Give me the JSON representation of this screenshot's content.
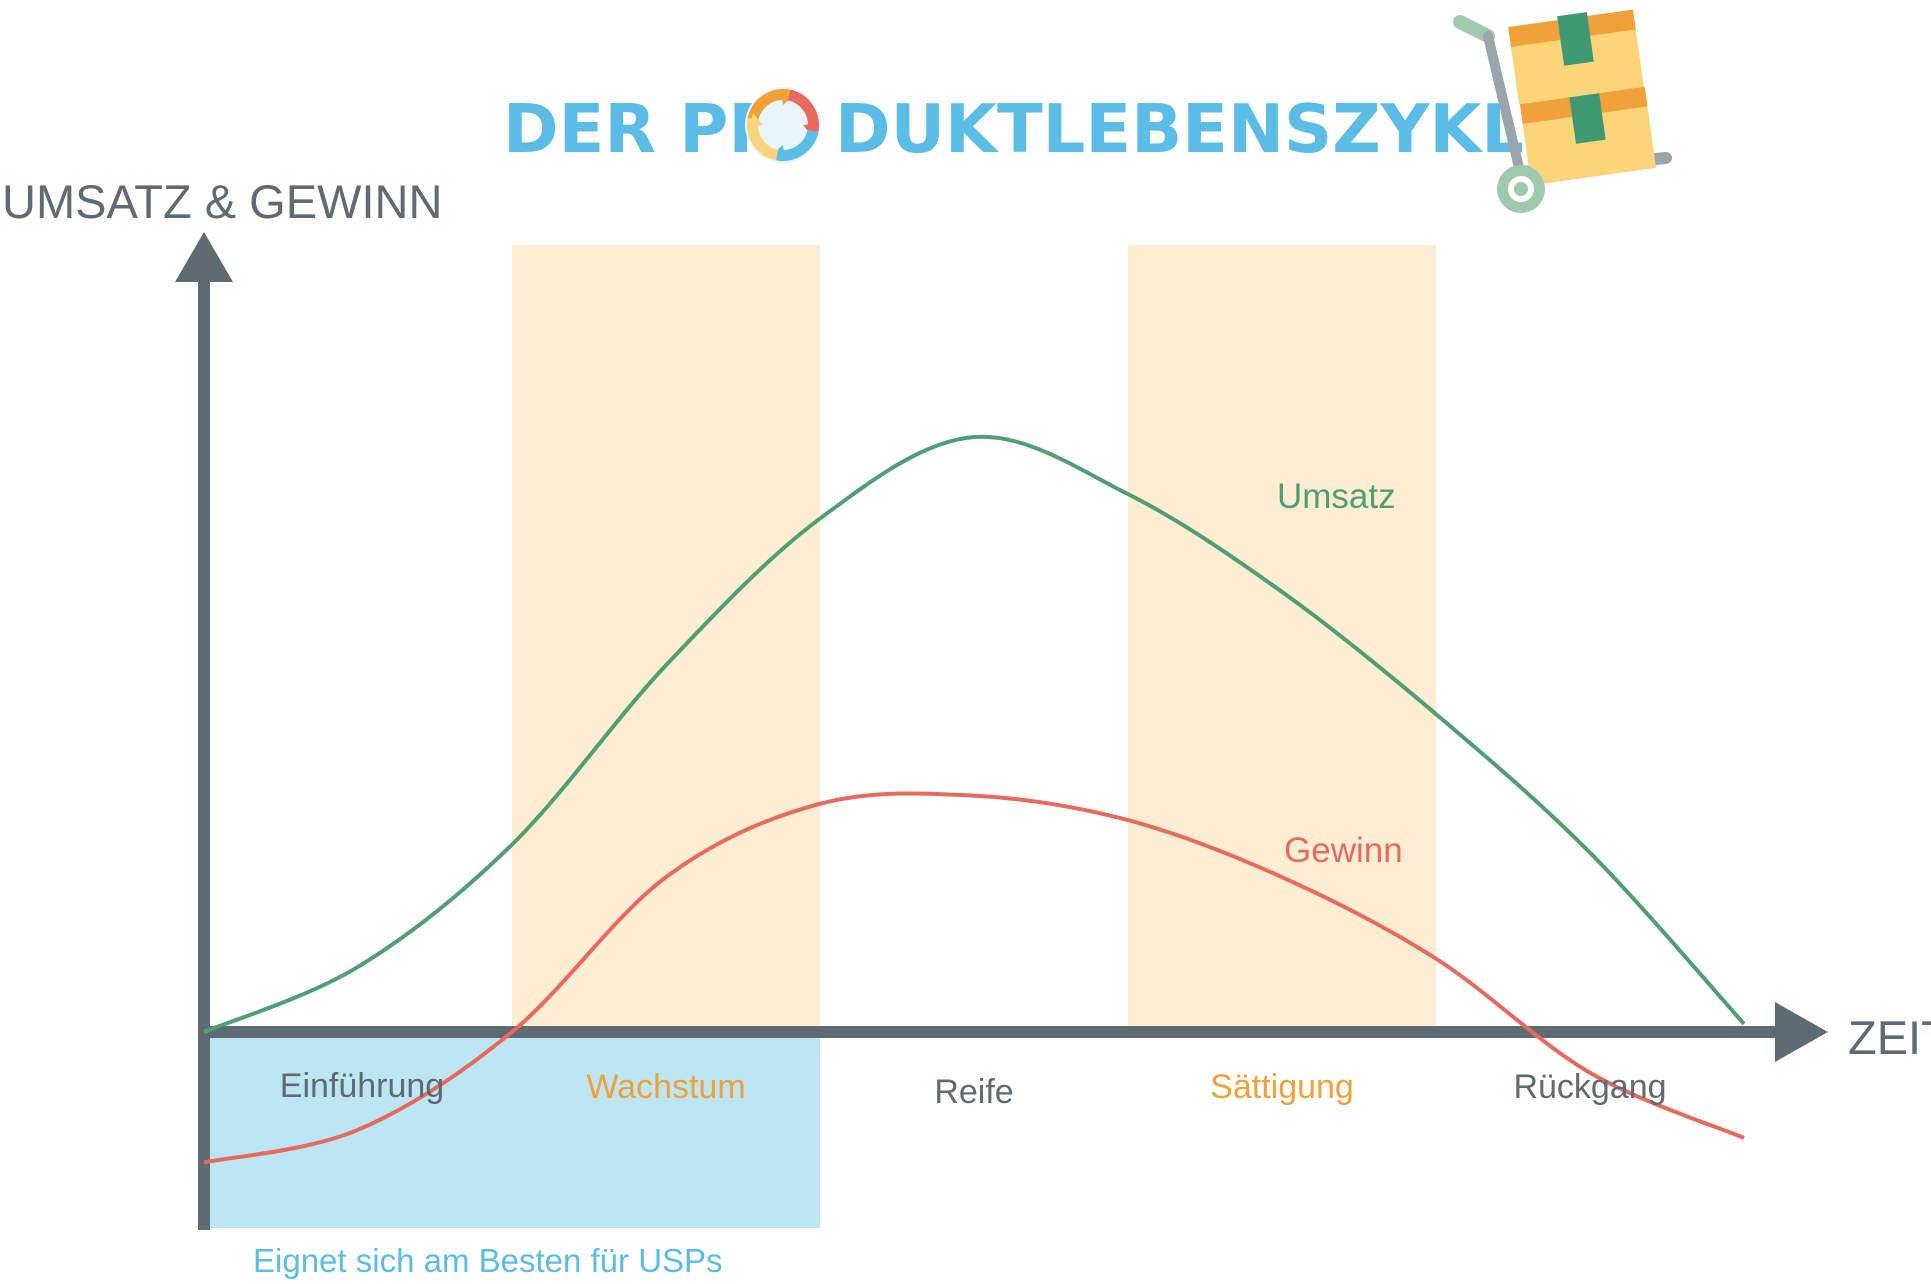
{
  "title": {
    "before": "DER PR",
    "after": "DUKTLEBENSZYKLUS",
    "color": "#5bbde5",
    "icon": "recycle-cycle-icon",
    "illustration": "hand-truck-boxes-icon"
  },
  "chart_data": {
    "type": "line",
    "title": "DER PRODUKTLEBENSZYKLUS",
    "ylabel": "UMSATZ & GEWINN",
    "xlabel": "ZEIT",
    "x": [
      0,
      0.5,
      1,
      1.5,
      2,
      2.5,
      3,
      3.5,
      4,
      4.5,
      5
    ],
    "xlim": [
      0,
      5.1
    ],
    "ylim": [
      -1.6,
      7.3
    ],
    "grid": false,
    "legend": "inline labels",
    "phases": [
      {
        "label": "Einführung",
        "from": 0,
        "to": 1,
        "shaded": false,
        "label_color": "#5f6b72"
      },
      {
        "label": "Wachstum",
        "from": 1,
        "to": 2,
        "shaded": true,
        "label_color": "#f0a13a"
      },
      {
        "label": "Reife",
        "from": 2,
        "to": 3,
        "shaded": false,
        "label_color": "#5f6b72"
      },
      {
        "label": "Sättigung",
        "from": 3,
        "to": 4,
        "shaded": true,
        "label_color": "#f0a13a"
      },
      {
        "label": "Rückgang",
        "from": 4,
        "to": 5,
        "shaded": false,
        "label_color": "#5f6b72"
      }
    ],
    "highlight": {
      "from": 0,
      "to": 2,
      "label": "Eignet sich am Besten für USPs",
      "color": "#bde6f5",
      "label_color": "#5bbde5"
    },
    "series": [
      {
        "name": "Umsatz",
        "color": "#4f9e74",
        "values": [
          0,
          0.8,
          2.3,
          4.5,
          6.3,
          7.3,
          6.6,
          5.4,
          3.9,
          2.2,
          0.1
        ]
      },
      {
        "name": "Gewinn",
        "color": "#e86a5c",
        "values": [
          -1.6,
          -1.2,
          0,
          1.9,
          2.8,
          2.9,
          2.6,
          1.9,
          0.9,
          -0.5,
          -1.3
        ]
      }
    ],
    "colors": {
      "axis": "#5f6b72",
      "phase_band": "#fdedd3"
    }
  }
}
